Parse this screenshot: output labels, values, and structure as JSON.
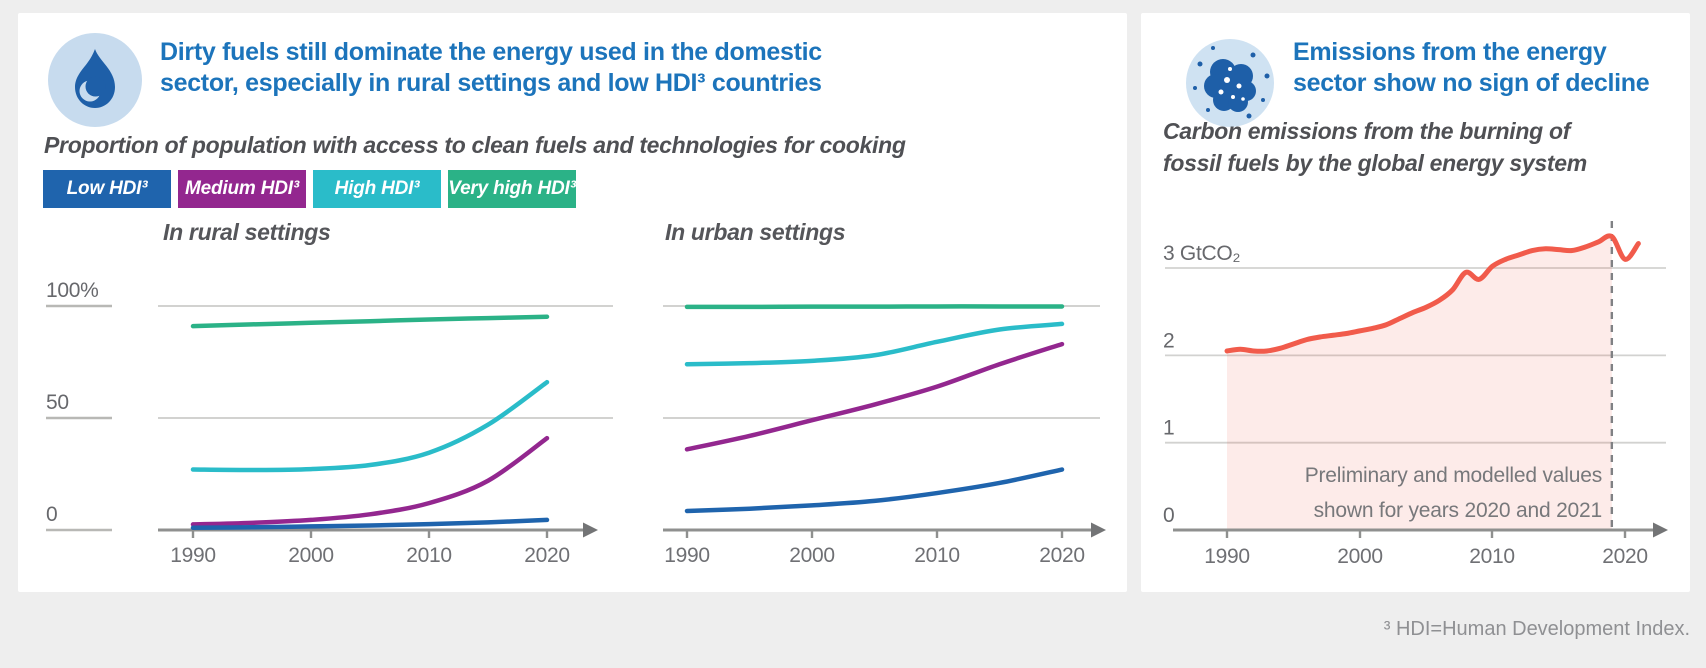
{
  "page": {
    "footnote": "³ HDI=Human Development Index."
  },
  "left_panel": {
    "icon": "flame-icon",
    "title_line1": "Dirty fuels still dominate the energy used in the domestic",
    "title_line2": "sector, especially in rural settings and low HDI³ countries",
    "subtitle": "Proportion of population with access to clean fuels and technologies for cooking",
    "legend": [
      {
        "label": "Low HDI³",
        "color": "#1f64ad"
      },
      {
        "label": "Medium HDI³",
        "color": "#93278f"
      },
      {
        "label": "High HDI³",
        "color": "#2abcc9"
      },
      {
        "label": "Very high HDI³",
        "color": "#2bb287"
      }
    ]
  },
  "right_panel": {
    "icon": "emissions-particles-icon",
    "title_line1": "Emissions from the energy",
    "title_line2": "sector show no sign of decline",
    "subtitle_line1": "Carbon emissions from the burning of",
    "subtitle_line2": "fossil fuels by the global energy system",
    "annotation_line1": "Preliminary and modelled values",
    "annotation_line2": "shown for years 2020 and 2021"
  },
  "chart_data": [
    {
      "id": "rural",
      "type": "line",
      "title": "In rural settings",
      "x": [
        1990,
        1995,
        2000,
        2005,
        2010,
        2015,
        2020
      ],
      "x_ticks": [
        "1990",
        "2000",
        "2010",
        "2020"
      ],
      "y_tick_labels": [
        "100%",
        "50",
        "0"
      ],
      "y_tick_values": [
        100,
        50,
        0
      ],
      "ylim": [
        0,
        100
      ],
      "grid": "horizontal",
      "legend_position": "top",
      "series": [
        {
          "name": "Low HDI³",
          "color": "#1f64ad",
          "values": [
            1,
            1.2,
            1.6,
            2,
            2.6,
            3.4,
            4.5
          ]
        },
        {
          "name": "Medium HDI³",
          "color": "#93278f",
          "values": [
            2.5,
            3.2,
            4.5,
            7,
            12,
            22,
            41
          ]
        },
        {
          "name": "High HDI³",
          "color": "#2abcc9",
          "values": [
            27,
            26.8,
            27.2,
            29,
            34.5,
            47,
            66
          ]
        },
        {
          "name": "Very high HDI³",
          "color": "#2bb287",
          "values": [
            91,
            91.8,
            92.5,
            93.2,
            94,
            94.6,
            95.2
          ]
        }
      ]
    },
    {
      "id": "urban",
      "type": "line",
      "title": "In urban settings",
      "x": [
        1990,
        1995,
        2000,
        2005,
        2010,
        2015,
        2020
      ],
      "x_ticks": [
        "1990",
        "2000",
        "2010",
        "2020"
      ],
      "y_tick_labels": [],
      "y_tick_values": [
        100,
        50,
        0
      ],
      "ylim": [
        0,
        100
      ],
      "grid": "horizontal",
      "series": [
        {
          "name": "Low HDI³",
          "color": "#1f64ad",
          "values": [
            8.5,
            9.5,
            11,
            13,
            16.5,
            21,
            27
          ]
        },
        {
          "name": "Medium HDI³",
          "color": "#93278f",
          "values": [
            36,
            42,
            49,
            56,
            64,
            74,
            83
          ]
        },
        {
          "name": "High HDI³",
          "color": "#2abcc9",
          "values": [
            74,
            74.5,
            75.5,
            78,
            84,
            89.5,
            92
          ]
        },
        {
          "name": "Very high HDI³",
          "color": "#2bb287",
          "values": [
            99.6,
            99.6,
            99.7,
            99.7,
            99.8,
            99.8,
            99.8
          ]
        }
      ]
    },
    {
      "id": "emissions",
      "type": "area",
      "title": "",
      "x_start": 1990,
      "x_end": 2021,
      "x_ticks": [
        "1990",
        "2000",
        "2010",
        "2020"
      ],
      "y_tick_labels": [
        "3 GtCO₂",
        "2",
        "1",
        "0"
      ],
      "y_tick_values": [
        3,
        2,
        1,
        0
      ],
      "ylim": [
        0,
        3.65
      ],
      "unit": "GtCO₂",
      "dashed_year": 2019,
      "grid": "horizontal",
      "series": [
        {
          "name": "Carbon emissions",
          "color": "#f15b4b",
          "fill": "rgba(241,91,75,0.12)",
          "values": [
            2.05,
            2.07,
            2.05,
            2.05,
            2.08,
            2.13,
            2.18,
            2.21,
            2.23,
            2.25,
            2.28,
            2.31,
            2.35,
            2.42,
            2.49,
            2.55,
            2.63,
            2.75,
            2.95,
            2.87,
            3.02,
            3.1,
            3.15,
            3.2,
            3.22,
            3.21,
            3.2,
            3.24,
            3.3,
            3.36,
            3.1,
            3.28
          ]
        }
      ]
    }
  ]
}
